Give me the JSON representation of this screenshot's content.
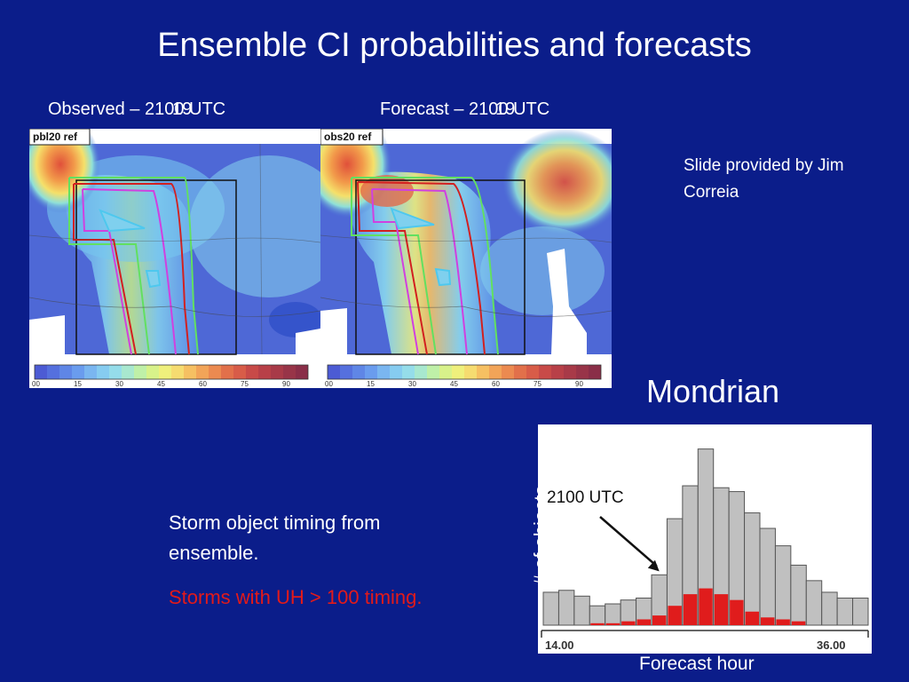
{
  "title": "Ensemble CI probabilities and forecasts",
  "left_panel": {
    "label": "Observed – 2100 UTC",
    "label_overlay": "19",
    "map_title": "pbl20 ref",
    "colorbar_ticks": [
      "00",
      "15",
      "30",
      "45",
      "60",
      "75",
      "90"
    ]
  },
  "right_panel": {
    "label": "Forecast – 2100 UTC",
    "label_overlay": "19",
    "map_title": "obs20 ref",
    "colorbar_ticks": [
      "00",
      "15",
      "30",
      "45",
      "60",
      "75",
      "90"
    ]
  },
  "credit": "Slide provided by Jim Correia",
  "mondrian_label": "Mondrian",
  "storm_text_1": "Storm object timing from ensemble.",
  "storm_text_2": "Storms with UH > 100 timing.",
  "colors": {
    "background": "#0b1d8a",
    "gray_bar": "#c0c0c0",
    "red_bar": "#e01c1c",
    "accent_red_text": "#e21a1a"
  },
  "chart_data": {
    "type": "bar",
    "title": "",
    "xlabel": "Forecast hour",
    "ylabel": "# of objects",
    "x_tick_labels": [
      "14.00",
      "36.00"
    ],
    "annotation": "2100 UTC",
    "annotation_bin_index": 7,
    "ylim": [
      0,
      100
    ],
    "series": [
      {
        "name": "",
        "values": [
          17,
          18,
          15,
          10,
          11,
          13,
          14,
          26,
          55,
          72,
          91,
          71,
          69,
          58,
          50,
          41,
          31,
          23,
          17,
          14,
          14
        ]
      },
      {
        "name": "",
        "values": [
          0,
          0,
          0,
          1,
          1,
          2,
          3,
          5,
          10,
          16,
          19,
          16,
          13,
          7,
          4,
          3,
          2,
          0,
          0,
          0,
          0
        ]
      }
    ]
  }
}
